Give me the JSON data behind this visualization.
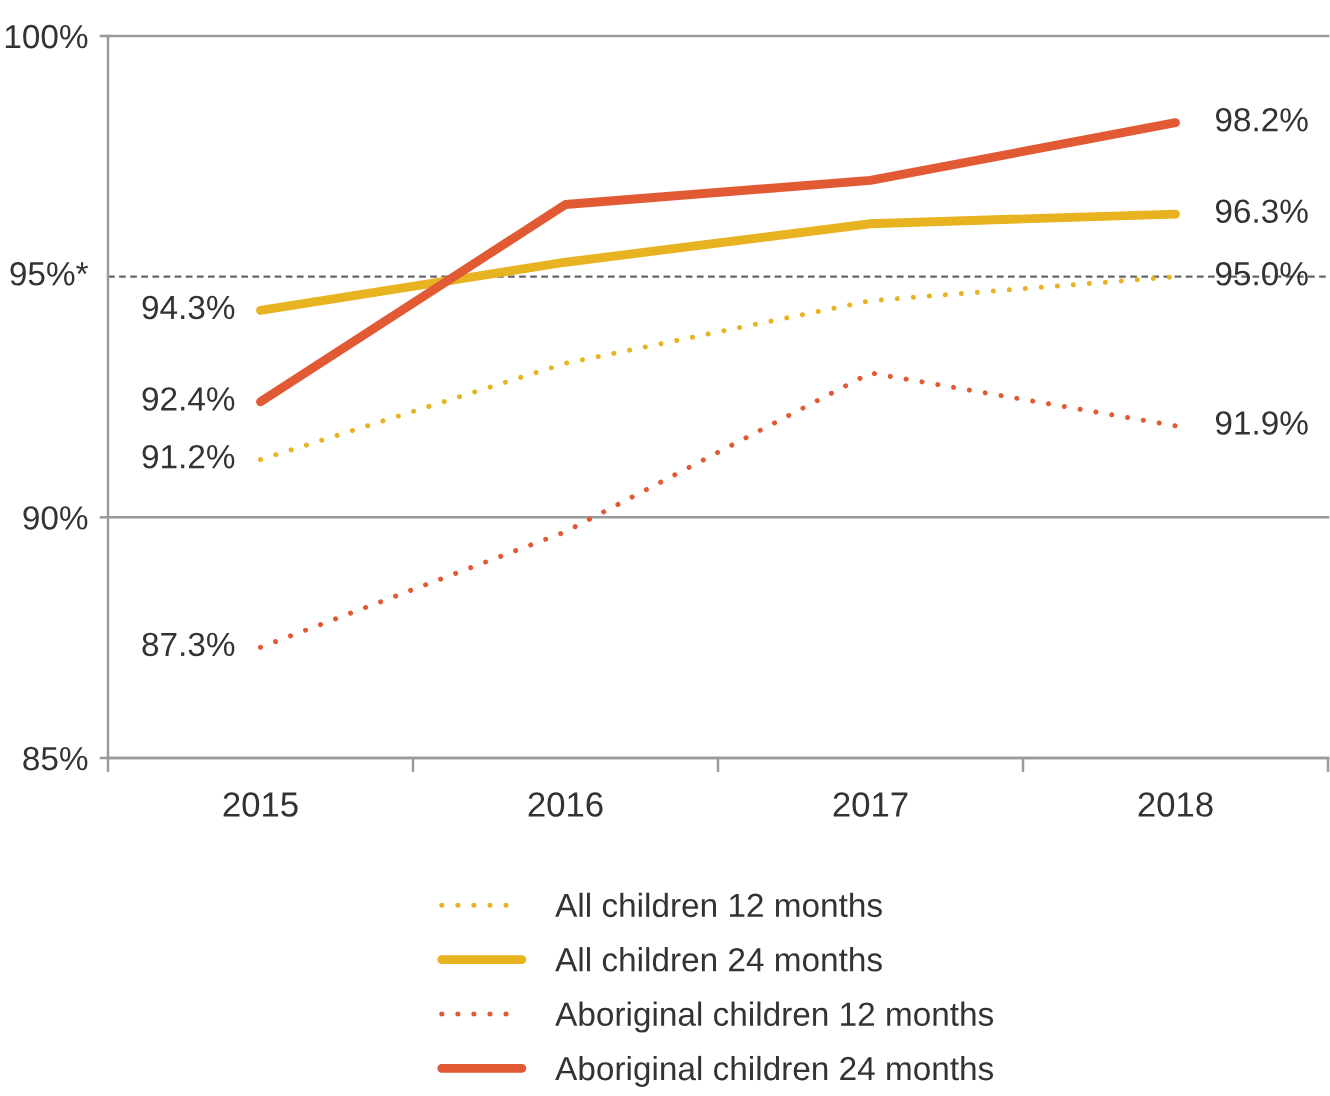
{
  "chart_data": {
    "type": "line",
    "categories": [
      "2015",
      "2016",
      "2017",
      "2018"
    ],
    "ylim": [
      85,
      100
    ],
    "yticks": [
      {
        "value": 85,
        "label": "85%"
      },
      {
        "value": 90,
        "label": "90%"
      },
      {
        "value": 100,
        "label": "100%"
      }
    ],
    "grid": "y",
    "legend": "bottom",
    "ref_lines": [
      {
        "axis": "y",
        "value": 95,
        "label": "95%*",
        "color": "#666666",
        "line_style": "dashed"
      }
    ],
    "series": [
      {
        "name": "All children 12 months",
        "color": "#e8b320",
        "line_style": "dotted",
        "values": [
          91.2,
          93.2,
          94.5,
          95.0
        ],
        "value_labels": [
          "91.2%",
          null,
          null,
          "95.0%"
        ]
      },
      {
        "name": "All children 24 months",
        "color": "#e8b320",
        "line_style": "solid",
        "values": [
          94.3,
          95.3,
          96.1,
          96.3
        ],
        "value_labels": [
          "94.3%",
          null,
          null,
          "96.3%"
        ]
      },
      {
        "name": "Aboriginal children 12 months",
        "color": "#e15a34",
        "line_style": "dotted",
        "values": [
          87.3,
          89.7,
          93.0,
          91.9
        ],
        "value_labels": [
          "87.3%",
          null,
          null,
          "91.9%"
        ]
      },
      {
        "name": "Aboriginal children 24 months",
        "color": "#e15a34",
        "line_style": "solid",
        "values": [
          92.4,
          96.5,
          97.0,
          98.2
        ],
        "value_labels": [
          "92.4%",
          null,
          null,
          "98.2%"
        ]
      }
    ]
  }
}
